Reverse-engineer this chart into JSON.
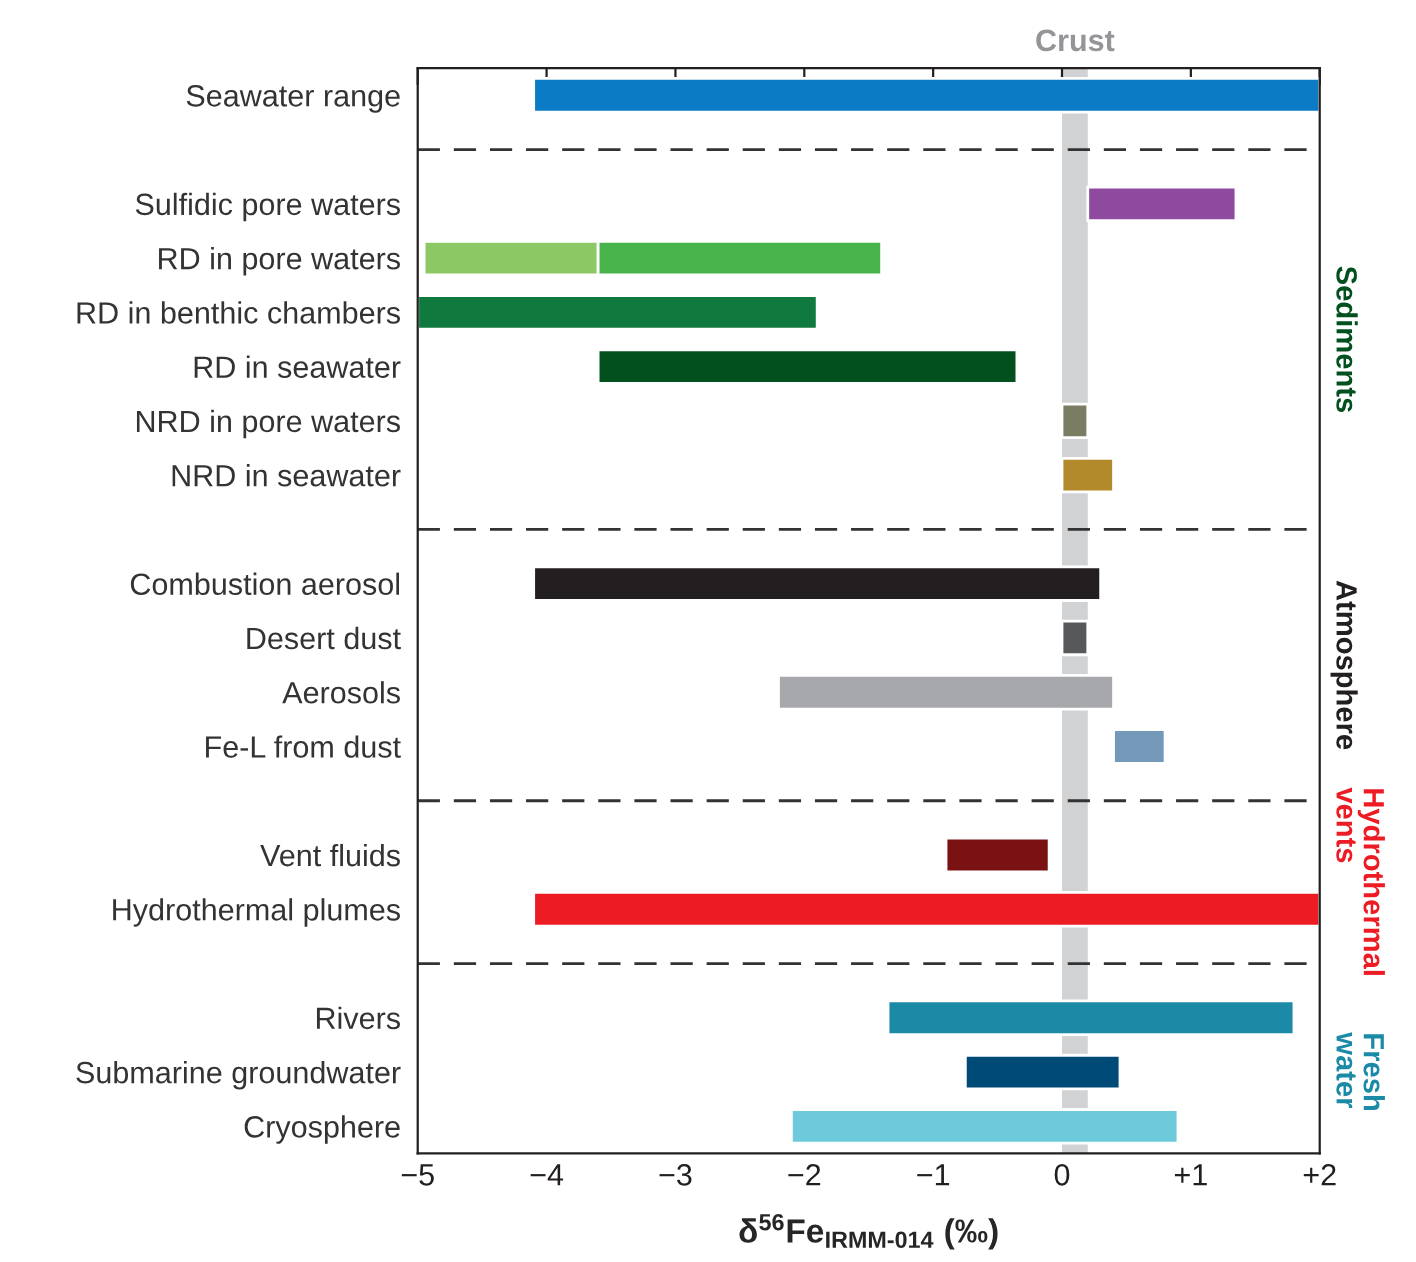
{
  "chart_data": {
    "type": "bar",
    "orientation": "horizontal",
    "xlabel": "δ$^{56}$Fe$_{IRMM‐014}$ (‰)",
    "categories": [
      "Seawater range",
      null,
      "Sulfidic pore waters",
      "RD in pore waters",
      "RD in benthic chambers",
      "RD in seawater",
      "NRD in pore waters",
      "NRD in seawater",
      null,
      "Combustion aerosol",
      "Desert dust",
      "Aerosols",
      "Fe-L from dust",
      null,
      "Vent fluids",
      "Hydrothermal plumes",
      null,
      "Rivers",
      "Submarine groundwater",
      "Cryosphere"
    ],
    "series": [
      {
        "base": [
          -4.1,
          null,
          0.2,
          -4.95,
          -5,
          -3.6,
          0,
          0,
          null,
          -4.1,
          0,
          -2.2,
          0.4,
          null,
          -0.9,
          -4.1,
          null,
          -1.35,
          -0.75,
          -2.1
        ],
        "colors": [
          "#0a7bc4",
          null,
          "#8d4a9e",
          "#8cc864",
          "#107a3e",
          "#03501f",
          "#7a7d62",
          "#b38a2b",
          null,
          "#231f20",
          "#57585a",
          "#a6a8ab",
          "#7499b8",
          null,
          "#7a1113",
          "#ed1c24",
          null,
          "#1b8aa6",
          "#004a78",
          "#6ccadb"
        ],
        "values": [
          6.1,
          null,
          1.15,
          1.35,
          3.1,
          3.25,
          0.2,
          0.4,
          null,
          4.4,
          0.2,
          2.6,
          0.4,
          null,
          0.8,
          6.1,
          null,
          3.15,
          1.2,
          3.0
        ]
      },
      {
        "color": "#48b34a",
        "base": [
          null,
          null,
          null,
          -3.6,
          null,
          null,
          null,
          null,
          null,
          null,
          null,
          null,
          null,
          null,
          null,
          null,
          null,
          null,
          null,
          null
        ],
        "values": [
          null,
          null,
          null,
          2.2,
          null,
          null,
          null,
          null,
          null,
          null,
          null,
          null,
          null,
          null,
          null,
          null,
          null,
          null,
          null,
          null
        ]
      }
    ],
    "xlim": [
      -5,
      2
    ],
    "xticks": [
      {
        "value": -5,
        "label": "−5"
      },
      {
        "value": -4,
        "label": "−4"
      },
      {
        "value": -3,
        "label": "−3"
      },
      {
        "value": -2,
        "label": "−2"
      },
      {
        "value": -1,
        "label": "−1"
      },
      0,
      {
        "value": 1,
        "label": "+1"
      },
      {
        "value": 2,
        "label": "+2"
      }
    ],
    "bands": [
      {
        "axis": "x",
        "from": 0,
        "to": 0.2,
        "label": "Crust",
        "color": "#d1d2d4"
      }
    ],
    "annotations": [
      "Sediments",
      "Atmosphere",
      "Hydrothermal\nvents",
      "Fresh\nwater"
    ],
    "grid": false
  }
}
